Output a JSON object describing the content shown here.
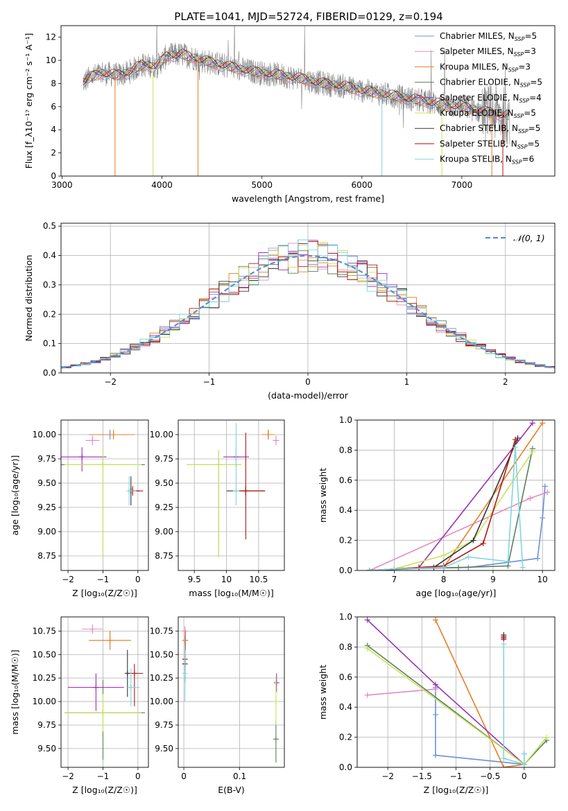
{
  "figure": {
    "title": "PLATE=1041, MJD=52724, FIBERID=0129, z=0.194"
  },
  "colors": {
    "Chabrier MILES": "#6b8fd9",
    "Salpeter MILES": "#e48bbf",
    "Kroupa MILES": "#e67e22",
    "Chabrier ELODIE": "#5a7f5a",
    "Salpeter ELODIE": "#9b2fb3",
    "Kroupa ELODIE": "#c9e35a",
    "Chabrier STELIB": "#333333",
    "Salpeter STELIB": "#b01515",
    "Kroupa STELIB": "#7fd6e0",
    "observed": "#808080",
    "grid": "#b0b0b0"
  },
  "chart_data": [
    {
      "id": "spectrum",
      "type": "line",
      "xlabel": "wavelength [Angstrom, rest frame]",
      "ylabel": "Flux [f_λ10⁻¹⁷ erg cm⁻² s⁻¹ A⁻¹]",
      "xlim": [
        2990,
        7930
      ],
      "ylim": [
        0,
        13
      ],
      "xticks": [
        3000,
        4000,
        5000,
        6000,
        7000
      ],
      "yticks": [
        0,
        2,
        4,
        6,
        8,
        10,
        12
      ],
      "grid": false,
      "legend_position": "top-right",
      "legend": [
        {
          "model": "Chabrier MILES",
          "label": "Chabrier MILES, N_SSP=5"
        },
        {
          "model": "Salpeter MILES",
          "label": "Salpeter MILES, N_SSP=3"
        },
        {
          "model": "Kroupa MILES",
          "label": "Kroupa MILES, N_SSP=3"
        },
        {
          "model": "Chabrier ELODIE",
          "label": "Chabrier ELODIE, N_SSP=5"
        },
        {
          "model": "Salpeter ELODIE",
          "label": "Salpeter ELODIE, N_SSP=4"
        },
        {
          "model": "Kroupa ELODIE",
          "label": "Kroupa ELODIE, N_SSP=5"
        },
        {
          "model": "Chabrier STELIB",
          "label": "Chabrier STELIB, N_SSP=5"
        },
        {
          "model": "Salpeter STELIB",
          "label": "Salpeter STELIB, N_SSP=5"
        },
        {
          "model": "Kroupa STELIB",
          "label": "Kroupa STELIB, N_SSP=6"
        }
      ],
      "continuum": [
        [
          3210,
          8.1
        ],
        [
          3300,
          8.6
        ],
        [
          3400,
          8.9
        ],
        [
          3550,
          8.7
        ],
        [
          3650,
          8.9
        ],
        [
          3800,
          9.6
        ],
        [
          3950,
          9.5
        ],
        [
          4050,
          10.4
        ],
        [
          4200,
          10.5
        ],
        [
          4400,
          10.0
        ],
        [
          4600,
          9.6
        ],
        [
          4800,
          9.2
        ],
        [
          5000,
          8.9
        ],
        [
          5200,
          8.7
        ],
        [
          5400,
          8.4
        ],
        [
          5600,
          8.0
        ],
        [
          5800,
          7.8
        ],
        [
          6000,
          7.4
        ],
        [
          6200,
          7.1
        ],
        [
          6400,
          6.8
        ],
        [
          6600,
          6.5
        ],
        [
          6800,
          6.2
        ],
        [
          7000,
          6.0
        ],
        [
          7200,
          5.6
        ],
        [
          7400,
          5.3
        ],
        [
          7480,
          5.2
        ]
      ]
    },
    {
      "id": "residual_hist",
      "type": "histogram",
      "xlabel": "(data-model)/error",
      "ylabel": "Normed distribution",
      "xlim": [
        -2.5,
        2.5
      ],
      "ylim": [
        0,
        0.51
      ],
      "xticks": [
        -2,
        -1,
        0,
        1,
        2
      ],
      "yticks": [
        0.0,
        0.1,
        0.2,
        0.3,
        0.4,
        0.5
      ],
      "grid": true,
      "legend_position": "top-right",
      "reference": {
        "label": "𝒩(0, 1)",
        "mean": 0,
        "sigma": 1,
        "style": "dashed"
      },
      "bin_width": 0.1
    },
    {
      "id": "age_vs_Z",
      "type": "errorbar",
      "xlabel": "Z [log₁₀(Z/Z☉)]",
      "ylabel": "age  [log₁₀(age/yr)]",
      "xlim": [
        -2.2,
        0.3
      ],
      "ylim": [
        8.6,
        10.15
      ],
      "xticks": [
        -2,
        -1,
        0
      ],
      "yticks": [
        8.75,
        9.0,
        9.25,
        9.5,
        9.75,
        10.0
      ],
      "grid": true,
      "points": [
        {
          "model": "Chabrier MILES",
          "x": -0.8,
          "xerr": [
            0.6,
            0.6
          ],
          "y": 10.0,
          "yerr": [
            0.05,
            0.05
          ]
        },
        {
          "model": "Salpeter MILES",
          "x": -1.3,
          "xerr": [
            0.2,
            0.2
          ],
          "y": 9.94,
          "yerr": [
            0.05,
            0.05
          ]
        },
        {
          "model": "Kroupa MILES",
          "x": -0.7,
          "xerr": [
            0.6,
            0.6
          ],
          "y": 10.0,
          "yerr": [
            0.05,
            0.05
          ]
        },
        {
          "model": "Chabrier ELODIE",
          "x": -1.0,
          "xerr": [
            1.2,
            1.2
          ],
          "y": 9.69,
          "yerr": [
            0.95,
            0.15
          ]
        },
        {
          "model": "Salpeter ELODIE",
          "x": -1.6,
          "xerr": [
            0.7,
            0.7
          ],
          "y": 9.77,
          "yerr": [
            0.15,
            0.1
          ]
        },
        {
          "model": "Kroupa ELODIE",
          "x": -1.0,
          "xerr": [
            1.1,
            1.1
          ],
          "y": 9.69,
          "yerr": [
            0.95,
            0.15
          ]
        },
        {
          "model": "Chabrier STELIB",
          "x": -0.2,
          "xerr": [
            0.05,
            0.25
          ],
          "y": 9.42,
          "yerr": [
            0.15,
            0.15
          ]
        },
        {
          "model": "Salpeter STELIB",
          "x": -0.15,
          "xerr": [
            0.05,
            0.3
          ],
          "y": 9.42,
          "yerr": [
            0.05,
            0.05
          ]
        },
        {
          "model": "Kroupa STELIB",
          "x": -0.25,
          "xerr": [
            0.05,
            0.2
          ],
          "y": 9.42,
          "yerr": [
            0.15,
            0.15
          ]
        }
      ]
    },
    {
      "id": "age_vs_mass",
      "type": "errorbar",
      "xlabel": "mass [log₁₀(M/M☉)]",
      "ylabel": "",
      "xlim": [
        9.25,
        10.9
      ],
      "ylim": [
        8.6,
        10.15
      ],
      "xticks": [
        9.5,
        10.0,
        10.5
      ],
      "yticks": [
        8.75,
        9.0,
        9.25,
        9.5,
        9.75,
        10.0
      ],
      "grid": true,
      "points": [
        {
          "model": "Chabrier MILES",
          "x": 10.65,
          "xerr": [
            0.1,
            0.1
          ],
          "y": 10.0,
          "yerr": [
            0.05,
            0.05
          ]
        },
        {
          "model": "Salpeter MILES",
          "x": 10.77,
          "xerr": [
            0.05,
            0.05
          ],
          "y": 9.94,
          "yerr": [
            0.05,
            0.05
          ]
        },
        {
          "model": "Kroupa MILES",
          "x": 10.65,
          "xerr": [
            0.1,
            0.1
          ],
          "y": 10.0,
          "yerr": [
            0.05,
            0.05
          ]
        },
        {
          "model": "Chabrier ELODIE",
          "x": 9.88,
          "xerr": [
            0.5,
            0.35
          ],
          "y": 9.69,
          "yerr": [
            0.95,
            0.15
          ]
        },
        {
          "model": "Salpeter ELODIE",
          "x": 10.15,
          "xerr": [
            0.2,
            0.2
          ],
          "y": 9.77,
          "yerr": [
            0.1,
            0.1
          ]
        },
        {
          "model": "Kroupa ELODIE",
          "x": 9.88,
          "xerr": [
            0.5,
            0.35
          ],
          "y": 9.69,
          "yerr": [
            0.95,
            0.15
          ]
        },
        {
          "model": "Chabrier STELIB",
          "x": 10.3,
          "xerr": [
            0.3,
            0.3
          ],
          "y": 9.42,
          "yerr": [
            0.05,
            0.05
          ]
        },
        {
          "model": "Salpeter STELIB",
          "x": 10.3,
          "xerr": [
            0.1,
            0.3
          ],
          "y": 9.42,
          "yerr": [
            0.5,
            0.6
          ]
        },
        {
          "model": "Kroupa STELIB",
          "x": 10.15,
          "xerr": [
            0.05,
            0.05
          ],
          "y": 9.42,
          "yerr": [
            0.15,
            0.7
          ]
        }
      ]
    },
    {
      "id": "weight_vs_age",
      "type": "line",
      "xlabel": "age  [log₁₀(age/yr)]",
      "ylabel": "mass weight",
      "xlim": [
        6.25,
        10.25
      ],
      "ylim": [
        0.0,
        1.0
      ],
      "xticks": [
        7,
        8,
        9,
        10
      ],
      "yticks": [
        0.0,
        0.2,
        0.4,
        0.6,
        0.8,
        1.0
      ],
      "grid": true,
      "series": [
        {
          "model": "Chabrier MILES",
          "x": [
            6.5,
            7.0,
            8.5,
            9.9,
            10.0,
            10.05
          ],
          "y": [
            0.0,
            0.01,
            0.02,
            0.08,
            0.35,
            0.56
          ]
        },
        {
          "model": "Salpeter MILES",
          "x": [
            6.5,
            9.75,
            10.1
          ],
          "y": [
            0.0,
            0.48,
            0.52
          ]
        },
        {
          "model": "Kroupa MILES",
          "x": [
            6.5,
            8.0,
            10.0
          ],
          "y": [
            0.0,
            0.02,
            0.98
          ]
        },
        {
          "model": "Chabrier ELODIE",
          "x": [
            6.5,
            7.0,
            8.3,
            9.3,
            9.8
          ],
          "y": [
            0.0,
            0.01,
            0.02,
            0.03,
            0.81
          ]
        },
        {
          "model": "Salpeter ELODIE",
          "x": [
            6.5,
            7.5,
            9.8
          ],
          "y": [
            0.0,
            0.02,
            0.98
          ]
        },
        {
          "model": "Kroupa ELODIE",
          "x": [
            6.5,
            7.0,
            8.0,
            8.6,
            9.8
          ],
          "y": [
            0.0,
            0.01,
            0.1,
            0.2,
            0.79
          ]
        },
        {
          "model": "Chabrier STELIB",
          "x": [
            6.5,
            7.8,
            8.6,
            9.5
          ],
          "y": [
            0.0,
            0.02,
            0.2,
            0.88
          ]
        },
        {
          "model": "Salpeter STELIB",
          "x": [
            6.5,
            7.5,
            8.0,
            8.8,
            9.45
          ],
          "y": [
            0.0,
            0.02,
            0.03,
            0.18,
            0.87
          ]
        },
        {
          "model": "Kroupa STELIB",
          "x": [
            6.5,
            7.0,
            8.0,
            8.5,
            9.3,
            9.45,
            9.6
          ],
          "y": [
            0.0,
            0.01,
            0.02,
            0.09,
            0.06,
            0.82,
            0.02
          ]
        }
      ]
    },
    {
      "id": "mass_vs_Z",
      "type": "errorbar",
      "xlabel": "Z [log₁₀(Z/Z☉)]",
      "ylabel": "mass [log₁₀(M/M☉)]",
      "xlim": [
        -2.2,
        0.3
      ],
      "ylim": [
        9.3,
        10.9
      ],
      "xticks": [
        -2,
        -1,
        0
      ],
      "yticks": [
        9.5,
        9.75,
        10.0,
        10.25,
        10.5,
        10.75
      ],
      "grid": true,
      "points": [
        {
          "model": "Chabrier MILES",
          "x": -0.8,
          "xerr": [
            0.6,
            0.6
          ],
          "y": 10.65,
          "yerr": [
            0.1,
            0.1
          ]
        },
        {
          "model": "Salpeter MILES",
          "x": -1.3,
          "xerr": [
            0.3,
            0.3
          ],
          "y": 10.77,
          "yerr": [
            0.05,
            0.05
          ]
        },
        {
          "model": "Kroupa MILES",
          "x": -0.8,
          "xerr": [
            0.6,
            0.6
          ],
          "y": 10.65,
          "yerr": [
            0.1,
            0.1
          ]
        },
        {
          "model": "Chabrier ELODIE",
          "x": -1.0,
          "xerr": [
            1.1,
            1.2
          ],
          "y": 9.88,
          "yerr": [
            0.5,
            0.35
          ]
        },
        {
          "model": "Salpeter ELODIE",
          "x": -1.2,
          "xerr": [
            0.8,
            0.8
          ],
          "y": 10.15,
          "yerr": [
            0.25,
            0.15
          ]
        },
        {
          "model": "Kroupa ELODIE",
          "x": -1.0,
          "xerr": [
            1.1,
            1.1
          ],
          "y": 9.88,
          "yerr": [
            0.2,
            0.2
          ]
        },
        {
          "model": "Chabrier STELIB",
          "x": -0.3,
          "xerr": [
            0.05,
            0.05
          ],
          "y": 10.3,
          "yerr": [
            0.25,
            0.25
          ]
        },
        {
          "model": "Salpeter STELIB",
          "x": -0.1,
          "xerr": [
            0.15,
            0.25
          ],
          "y": 10.3,
          "yerr": [
            0.35,
            0.1
          ]
        },
        {
          "model": "Kroupa STELIB",
          "x": -0.2,
          "xerr": [
            0.1,
            0.25
          ],
          "y": 10.15,
          "yerr": [
            0.2,
            0.2
          ]
        }
      ]
    },
    {
      "id": "mass_vs_EBV",
      "type": "errorbar",
      "xlabel": "E(B-V)",
      "ylabel": "",
      "xlim": [
        -0.01,
        0.18
      ],
      "ylim": [
        9.3,
        10.9
      ],
      "xticks": [
        0.0,
        0.1
      ],
      "yticks": [
        9.5,
        9.75,
        10.0,
        10.25,
        10.5,
        10.75
      ],
      "grid": true,
      "points": [
        {
          "model": "Chabrier MILES",
          "x": 0.002,
          "xerr": [
            0,
            0
          ],
          "y": 10.65,
          "yerr": [
            0.1,
            0.1
          ]
        },
        {
          "model": "Salpeter MILES",
          "x": 0.002,
          "xerr": [
            0,
            0
          ],
          "y": 10.75,
          "yerr": [
            0.05,
            0.05
          ]
        },
        {
          "model": "Kroupa MILES",
          "x": 0.003,
          "xerr": [
            0,
            0
          ],
          "y": 10.65,
          "yerr": [
            0.1,
            0.1
          ]
        },
        {
          "model": "Chabrier ELODIE",
          "x": 0.165,
          "xerr": [
            0,
            0
          ],
          "y": 9.6,
          "yerr": [
            0.25,
            0.2
          ]
        },
        {
          "model": "Salpeter ELODIE",
          "x": 0.166,
          "xerr": [
            0,
            0
          ],
          "y": 10.2,
          "yerr": [
            0.1,
            0.1
          ]
        },
        {
          "model": "Kroupa ELODIE",
          "x": 0.165,
          "xerr": [
            0,
            0
          ],
          "y": 10.0,
          "yerr": [
            0.25,
            0.25
          ]
        },
        {
          "model": "Chabrier STELIB",
          "x": 0.002,
          "xerr": [
            0,
            0
          ],
          "y": 10.4,
          "yerr": [
            0.2,
            0.2
          ]
        },
        {
          "model": "Salpeter STELIB",
          "x": 0.002,
          "xerr": [
            0,
            0
          ],
          "y": 10.45,
          "yerr": [
            0.15,
            0.15
          ]
        },
        {
          "model": "Kroupa STELIB",
          "x": 0.002,
          "xerr": [
            0,
            0
          ],
          "y": 10.3,
          "yerr": [
            0.3,
            0.3
          ]
        }
      ]
    },
    {
      "id": "weight_vs_Z",
      "type": "line",
      "xlabel": "Z [log₁₀(Z/Z☉)]",
      "ylabel": "mass weight",
      "xlim": [
        -2.45,
        0.45
      ],
      "ylim": [
        0.0,
        1.0
      ],
      "xticks": [
        -2.0,
        -1.5,
        -1.0,
        -0.5,
        0.0
      ],
      "yticks": [
        0.0,
        0.2,
        0.4,
        0.6,
        0.8,
        1.0
      ],
      "grid": true,
      "series": [
        {
          "model": "Chabrier MILES",
          "x": [
            -1.3,
            -1.3,
            -1.3,
            0.0,
            0.0
          ],
          "y": [
            0.53,
            0.35,
            0.08,
            0.02,
            0.09
          ]
        },
        {
          "model": "Salpeter MILES",
          "x": [
            -2.3,
            -1.3
          ],
          "y": [
            0.48,
            0.52
          ]
        },
        {
          "model": "Kroupa MILES",
          "x": [
            -1.3,
            -0.3,
            0.0
          ],
          "y": [
            0.98,
            0.0,
            0.02
          ]
        },
        {
          "model": "Chabrier ELODIE",
          "x": [
            -2.3,
            0.0,
            0.33
          ],
          "y": [
            0.81,
            0.02,
            0.18
          ]
        },
        {
          "model": "Salpeter ELODIE",
          "x": [
            -2.3,
            -1.3,
            0.0
          ],
          "y": [
            0.98,
            0.55,
            0.02
          ]
        },
        {
          "model": "Kroupa ELODIE",
          "x": [
            -2.3,
            0.0,
            0.33
          ],
          "y": [
            0.79,
            0.02,
            0.2
          ]
        },
        {
          "model": "Chabrier STELIB",
          "x": [
            -0.3,
            -0.3
          ],
          "y": [
            0.88,
            0.86
          ]
        },
        {
          "model": "Salpeter STELIB",
          "x": [
            -0.3,
            -0.3
          ],
          "y": [
            0.87,
            0.85
          ]
        },
        {
          "model": "Kroupa STELIB",
          "x": [
            -0.3,
            -0.3,
            0.0,
            0.0
          ],
          "y": [
            0.82,
            0.06,
            0.02,
            0.09
          ]
        }
      ]
    }
  ]
}
